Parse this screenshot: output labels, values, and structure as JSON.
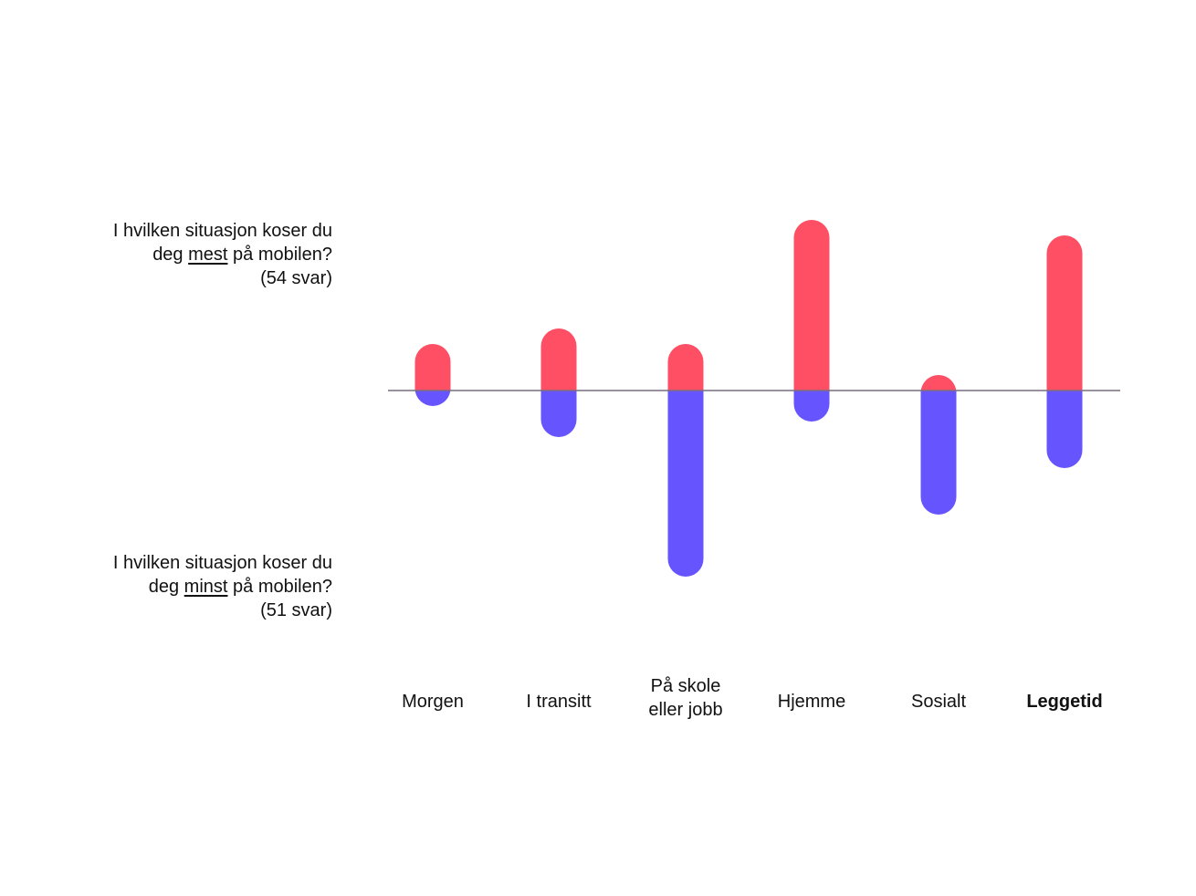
{
  "questions": {
    "top": {
      "line1": "I hvilken situasjon koser du",
      "prefix": "deg ",
      "emphasis": "mest",
      "suffix": " på mobilen?",
      "count": "(54 svar)"
    },
    "bottom": {
      "line1": "I hvilken situasjon koser du",
      "prefix": "deg ",
      "emphasis": "minst",
      "suffix": " på mobilen?",
      "count": "(51 svar)"
    }
  },
  "chart_data": {
    "type": "bar",
    "categories": [
      [
        "Morgen"
      ],
      [
        "I transitt"
      ],
      [
        "På skole",
        "eller jobb"
      ],
      [
        "Hjemme"
      ],
      [
        "Sosialt"
      ],
      [
        "Leggetid"
      ]
    ],
    "highlighted_category": "Leggetid",
    "series": [
      {
        "values": [
          3,
          4,
          3,
          11,
          1,
          10
        ],
        "color": "#ff4f64"
      },
      {
        "values": [
          1,
          3,
          12,
          2,
          8,
          5
        ],
        "color": "#6654ff"
      }
    ],
    "baseline_color": "#7a6f80"
  }
}
